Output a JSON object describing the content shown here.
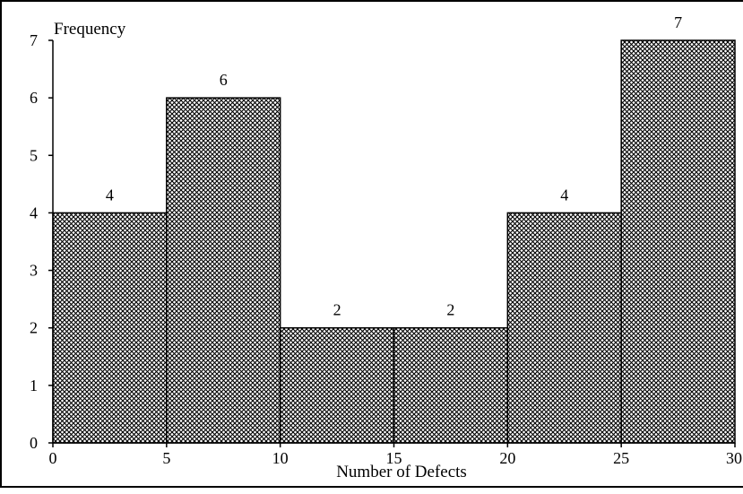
{
  "chart_data": {
    "type": "bar",
    "subtype": "histogram",
    "bins": [
      {
        "start": 0,
        "end": 5,
        "value": 4
      },
      {
        "start": 5,
        "end": 10,
        "value": 6
      },
      {
        "start": 10,
        "end": 15,
        "value": 2
      },
      {
        "start": 15,
        "end": 20,
        "value": 2
      },
      {
        "start": 20,
        "end": 25,
        "value": 4
      },
      {
        "start": 25,
        "end": 30,
        "value": 7
      }
    ],
    "x_ticks": [
      0,
      5,
      10,
      15,
      20,
      25,
      30
    ],
    "y_ticks": [
      0,
      1,
      2,
      3,
      4,
      5,
      6,
      7
    ],
    "xlim": [
      0,
      30
    ],
    "ylim": [
      0,
      7
    ],
    "xlabel": "Number of Defects",
    "ylabel": "Frequency",
    "data_labels": [
      "4",
      "6",
      "2",
      "2",
      "4",
      "7"
    ],
    "bar_fill": "crosshatch",
    "grid": false,
    "legend": "none"
  }
}
